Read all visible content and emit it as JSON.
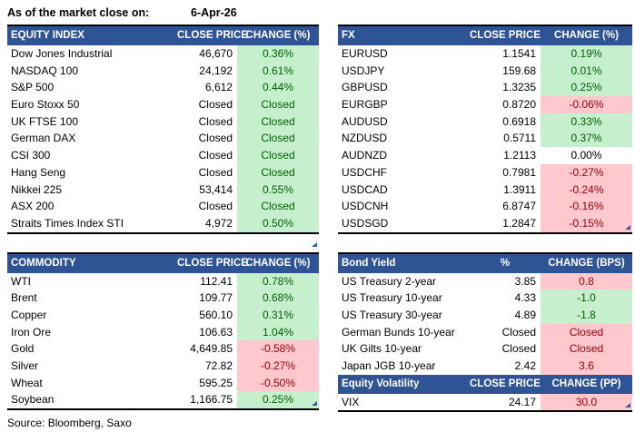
{
  "meta": {
    "as_of_label": "As of the market close on:",
    "as_of_date": "6-Apr-26",
    "source": "Source: Bloomberg, Saxo"
  },
  "colors": {
    "header_bg": "#2F5496",
    "header_text": "#FFFFFF",
    "positive_bg": "#C6EFCE",
    "positive_text": "#006100",
    "negative_bg": "#FFC7CE",
    "negative_text": "#9C0006",
    "marker_color": "#2F5BA8"
  },
  "tables": {
    "equity_index": {
      "headers": [
        "EQUITY INDEX",
        "CLOSE PRICE",
        "CHANGE (%)"
      ],
      "rows": [
        {
          "name": "Dow Jones Industrial",
          "price": "46,670",
          "change": "0.36%",
          "sentiment": "pos"
        },
        {
          "name": "NASDAQ 100",
          "price": "24,192",
          "change": "0.61%",
          "sentiment": "pos"
        },
        {
          "name": "S&P 500",
          "price": "6,612",
          "change": "0.44%",
          "sentiment": "pos"
        },
        {
          "name": "Euro Stoxx 50",
          "price": "Closed",
          "change": "Closed",
          "sentiment": "pos"
        },
        {
          "name": "UK FTSE 100",
          "price": "Closed",
          "change": "Closed",
          "sentiment": "pos"
        },
        {
          "name": "German DAX",
          "price": "Closed",
          "change": "Closed",
          "sentiment": "pos"
        },
        {
          "name": "CSI 300",
          "price": "Closed",
          "change": "Closed",
          "sentiment": "pos"
        },
        {
          "name": "Hang Seng",
          "price": "Closed",
          "change": "Closed",
          "sentiment": "pos"
        },
        {
          "name": "Nikkei 225",
          "price": "53,414",
          "change": "0.55%",
          "sentiment": "pos"
        },
        {
          "name": "ASX 200",
          "price": "Closed",
          "change": "Closed",
          "sentiment": "pos"
        },
        {
          "name": "Straits Times Index STI",
          "price": "4,972",
          "change": "0.50%",
          "sentiment": "pos"
        }
      ]
    },
    "fx": {
      "headers": [
        "FX",
        "CLOSE PRICE",
        "CHANGE (%)"
      ],
      "rows": [
        {
          "name": "EURUSD",
          "price": "1.1541",
          "change": "0.19%",
          "sentiment": "pos"
        },
        {
          "name": "USDJPY",
          "price": "159.68",
          "change": "0.01%",
          "sentiment": "pos"
        },
        {
          "name": "GBPUSD",
          "price": "1.3235",
          "change": "0.25%",
          "sentiment": "pos"
        },
        {
          "name": "EURGBP",
          "price": "0.8720",
          "change": "-0.06%",
          "sentiment": "neg"
        },
        {
          "name": "AUDUSD",
          "price": "0.6918",
          "change": "0.33%",
          "sentiment": "pos"
        },
        {
          "name": "NZDUSD",
          "price": "0.5711",
          "change": "0.37%",
          "sentiment": "pos"
        },
        {
          "name": "AUDNZD",
          "price": "1.2113",
          "change": "0.00%",
          "sentiment": "flat"
        },
        {
          "name": "USDCHF",
          "price": "0.7981",
          "change": "-0.27%",
          "sentiment": "neg"
        },
        {
          "name": "USDCAD",
          "price": "1.3911",
          "change": "-0.24%",
          "sentiment": "neg"
        },
        {
          "name": "USDCNH",
          "price": "6.8747",
          "change": "-0.16%",
          "sentiment": "neg"
        },
        {
          "name": "USDSGD",
          "price": "1.2847",
          "change": "-0.15%",
          "sentiment": "neg"
        }
      ]
    },
    "commodity": {
      "headers": [
        "COMMODITY",
        "CLOSE PRICE",
        "CHANGE (%)"
      ],
      "rows": [
        {
          "name": "WTI",
          "price": "112.41",
          "change": "0.78%",
          "sentiment": "pos"
        },
        {
          "name": "Brent",
          "price": "109.77",
          "change": "0.68%",
          "sentiment": "pos"
        },
        {
          "name": "Copper",
          "price": "560.10",
          "change": "0.31%",
          "sentiment": "pos"
        },
        {
          "name": "Iron Ore",
          "price": "106.63",
          "change": "1.04%",
          "sentiment": "pos"
        },
        {
          "name": "Gold",
          "price": "4,649.85",
          "change": "-0.58%",
          "sentiment": "neg"
        },
        {
          "name": "Silver",
          "price": "72.82",
          "change": "-0.27%",
          "sentiment": "neg"
        },
        {
          "name": "Wheat",
          "price": "595.25",
          "change": "-0.50%",
          "sentiment": "neg"
        },
        {
          "name": "Soybean",
          "price": "1,166.75",
          "change": "0.25%",
          "sentiment": "pos"
        }
      ]
    },
    "bond_yield": {
      "headers": [
        "Bond Yield",
        "%",
        "CHANGE (BPS)"
      ],
      "rows": [
        {
          "name": "US Treasury 2-year",
          "price": "3.85",
          "change": "0.8",
          "sentiment": "neg"
        },
        {
          "name": "US Treasury 10-year",
          "price": "4.33",
          "change": "-1.0",
          "sentiment": "pos"
        },
        {
          "name": "US Treasury 30-year",
          "price": "4.89",
          "change": "-1.8",
          "sentiment": "pos"
        },
        {
          "name": "German Bunds 10-year",
          "price": "Closed",
          "change": "Closed",
          "sentiment": "neg"
        },
        {
          "name": "UK Gilts 10-year",
          "price": "Closed",
          "change": "Closed",
          "sentiment": "neg"
        },
        {
          "name": "Japan JGB 10-year",
          "price": "2.42",
          "change": "3.6",
          "sentiment": "neg"
        }
      ]
    },
    "equity_volatility": {
      "headers": [
        "Equity Volatility",
        "CLOSE PRICE",
        "CHANGE (PP)"
      ],
      "rows": [
        {
          "name": "VIX",
          "price": "24.17",
          "change": "30.0",
          "sentiment": "neg"
        }
      ]
    }
  }
}
